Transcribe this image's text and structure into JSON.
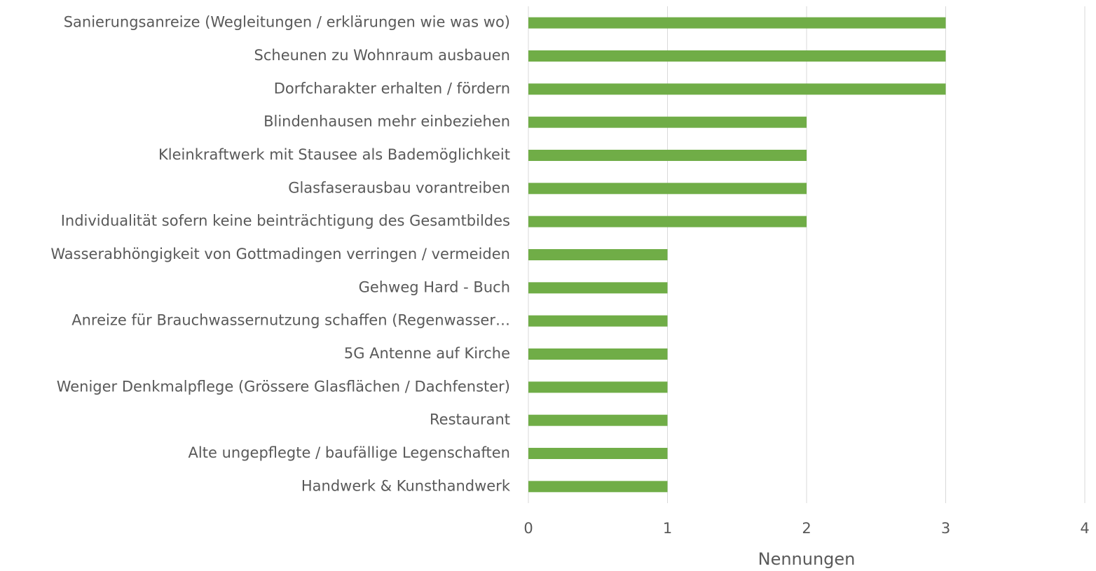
{
  "chart_data": {
    "type": "barh",
    "categories": [
      "Sanierungsanreize (Wegleitungen / erklärungen wie was wo)",
      "Scheunen zu Wohnraum ausbauen",
      "Dorfcharakter erhalten / fördern",
      "Blindenhausen mehr einbeziehen",
      "Kleinkraftwerk mit Stausee als Bademöglichkeit",
      "Glasfaserausbau vorantreiben",
      "Individualität sofern keine beinträchtigung des Gesamtbildes",
      "Wasserabhöngigkeit von Gottmadingen verringen / vermeiden",
      "Gehweg Hard - Buch",
      "Anreize für Brauchwassernutzung schaffen (Regenwasser…",
      "5G Antenne auf Kirche",
      "Weniger Denkmalpflege (Grössere Glasflächen / Dachfenster)",
      "Restaurant",
      "Alte ungepflegte / baufällige Legenschaften",
      "Handwerk & Kunsthandwerk"
    ],
    "values": [
      3,
      3,
      3,
      2,
      2,
      2,
      2,
      1,
      1,
      1,
      1,
      1,
      1,
      1,
      1
    ],
    "color": "#70ad47",
    "xlabel": "Nennungen",
    "xlim": [
      0,
      4
    ],
    "xticks": [
      0,
      1,
      2,
      3,
      4
    ],
    "grid": true
  }
}
